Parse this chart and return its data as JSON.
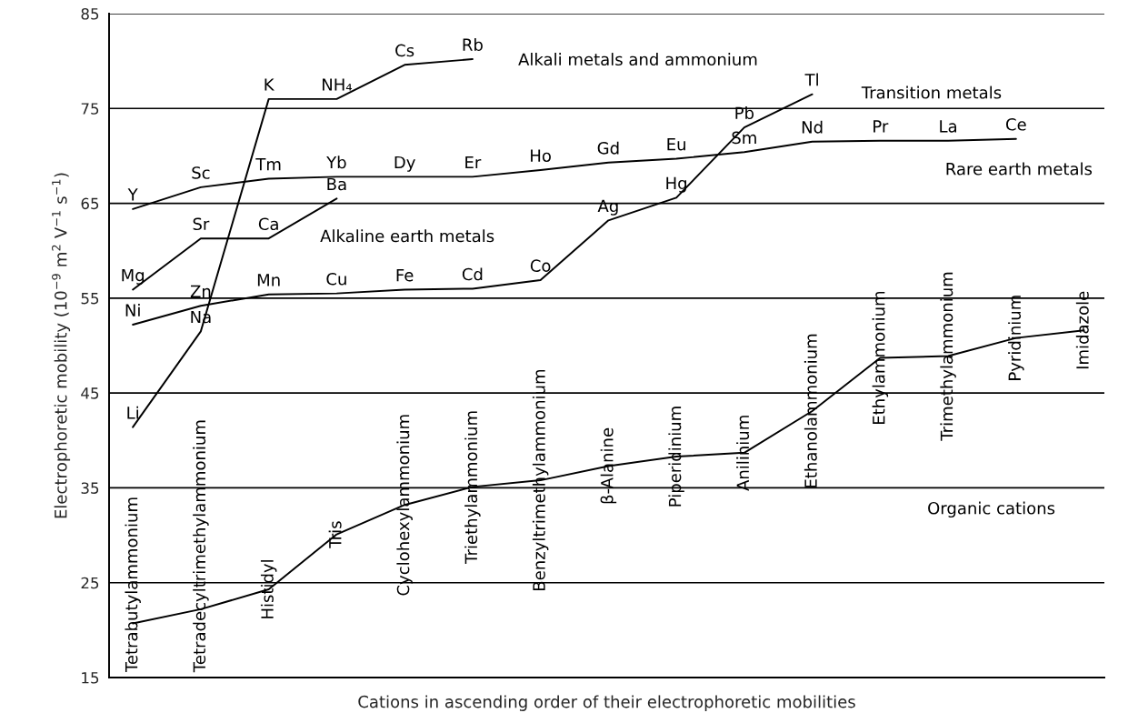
{
  "chart_data": {
    "type": "line",
    "xlabel": "Cations in ascending order of their electrophoretic mobilities",
    "ylabel": "Electrophoretic mobility (10$^{−9}$ m$^{2}$ V$^{−1}$ s$^{−1}$)",
    "annotations": [
      "Alkali metals and ammonium",
      "Transition metals",
      "Rare earth metals",
      "Alkaline earth metals",
      "Organic cations"
    ],
    "categories": [
      null,
      null,
      null,
      null,
      null,
      null,
      null,
      null,
      null,
      null,
      null,
      null,
      null,
      null,
      null
    ],
    "series": [
      {
        "color": "#000000",
        "values": [
          41.4,
          51.5,
          76,
          76,
          79.6,
          80.2,
          null,
          null,
          null,
          null,
          null,
          null,
          null,
          null,
          null
        ],
        "value_labels": [
          "Li",
          "Na",
          "K",
          "NH₄",
          "Cs",
          "Rb",
          null,
          null,
          null,
          null,
          null,
          null,
          null,
          null,
          null
        ]
      },
      {
        "color": "#000000",
        "values": [
          52.2,
          54.2,
          55.4,
          55.5,
          55.9,
          56.0,
          56.9,
          63.2,
          65.6,
          73.0,
          76.5,
          null,
          null,
          null,
          null
        ],
        "value_labels": [
          "Ni",
          "Zn",
          "Mn",
          "Cu",
          "Fe",
          "Cd",
          "Co",
          "Ag",
          "Hg",
          "Pb",
          "Tl",
          null,
          null,
          null,
          null
        ]
      },
      {
        "color": "#000000",
        "values": [
          64.4,
          66.7,
          67.6,
          67.8,
          67.8,
          67.8,
          68.5,
          69.3,
          69.7,
          70.4,
          71.5,
          71.6,
          71.6,
          71.8,
          null
        ],
        "value_labels": [
          "Y",
          "Sc",
          "Tm",
          "Yb",
          "Dy",
          "Er",
          "Ho",
          "Gd",
          "Eu",
          "Sm",
          "Nd",
          "Pr",
          "La",
          "Ce",
          null
        ]
      },
      {
        "color": "#000000",
        "values": [
          55.9,
          61.3,
          61.3,
          65.5,
          null,
          null,
          null,
          null,
          null,
          null,
          null,
          null,
          null,
          null,
          null
        ],
        "value_labels": [
          "Mg",
          "Sr",
          "Ca",
          "Ba",
          null,
          null,
          null,
          null,
          null,
          null,
          null,
          null,
          null,
          null,
          null
        ]
      },
      {
        "color": "#000000",
        "values": [
          20.7,
          22.2,
          24.3,
          30.1,
          33.2,
          35.1,
          35.8,
          37.3,
          38.3,
          38.7,
          43.1,
          48.7,
          48.9,
          50.8,
          51.6
        ],
        "value_labels": [
          "Tetrabutylammonium",
          "Tetradecyltrimethylammonium",
          "Histidyl",
          "Tris",
          "Cyclohexylammonium",
          "Triethylammonium",
          "Benzyltrimethylammonium",
          "β-Alanine",
          "Piperidinium",
          "Anilinium",
          "Ethanolammonium",
          "Ethylammonium",
          "Trimethylammonium",
          "Pyridinium",
          "Imidazole"
        ]
      }
    ],
    "ylim": [
      15,
      85
    ],
    "yticks": [
      15,
      25,
      35,
      45,
      55,
      65,
      75,
      85
    ],
    "grid": "y",
    "tick_labels": "y"
  }
}
